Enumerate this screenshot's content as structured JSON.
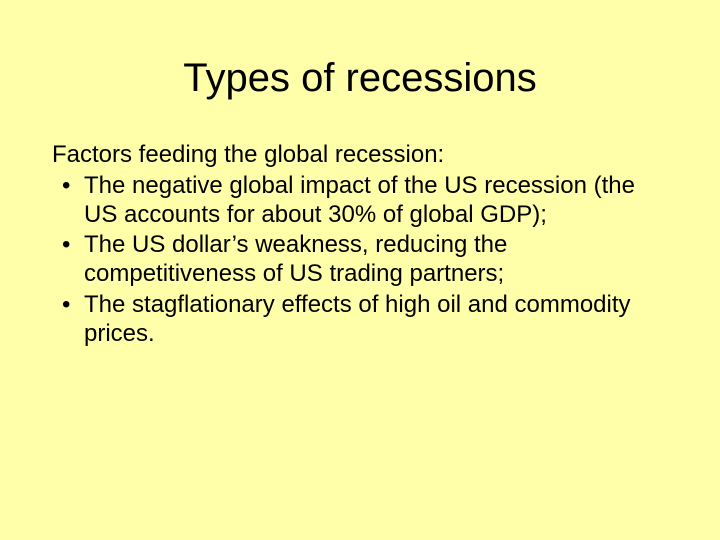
{
  "slide": {
    "background_color": "#ffffaa",
    "text_color": "#000000",
    "title": {
      "text": "Types of recessions",
      "fontsize": 40,
      "fontweight": "normal",
      "align": "center"
    },
    "body": {
      "fontsize": 24,
      "intro": "Factors feeding the global recession:",
      "bullets": [
        "The negative global impact of the US recession (the US accounts for about 30% of global GDP);",
        "The US dollar’s weakness, reducing the competitiveness of US trading partners;",
        "The stagflationary effects of high oil and commodity prices."
      ]
    }
  }
}
